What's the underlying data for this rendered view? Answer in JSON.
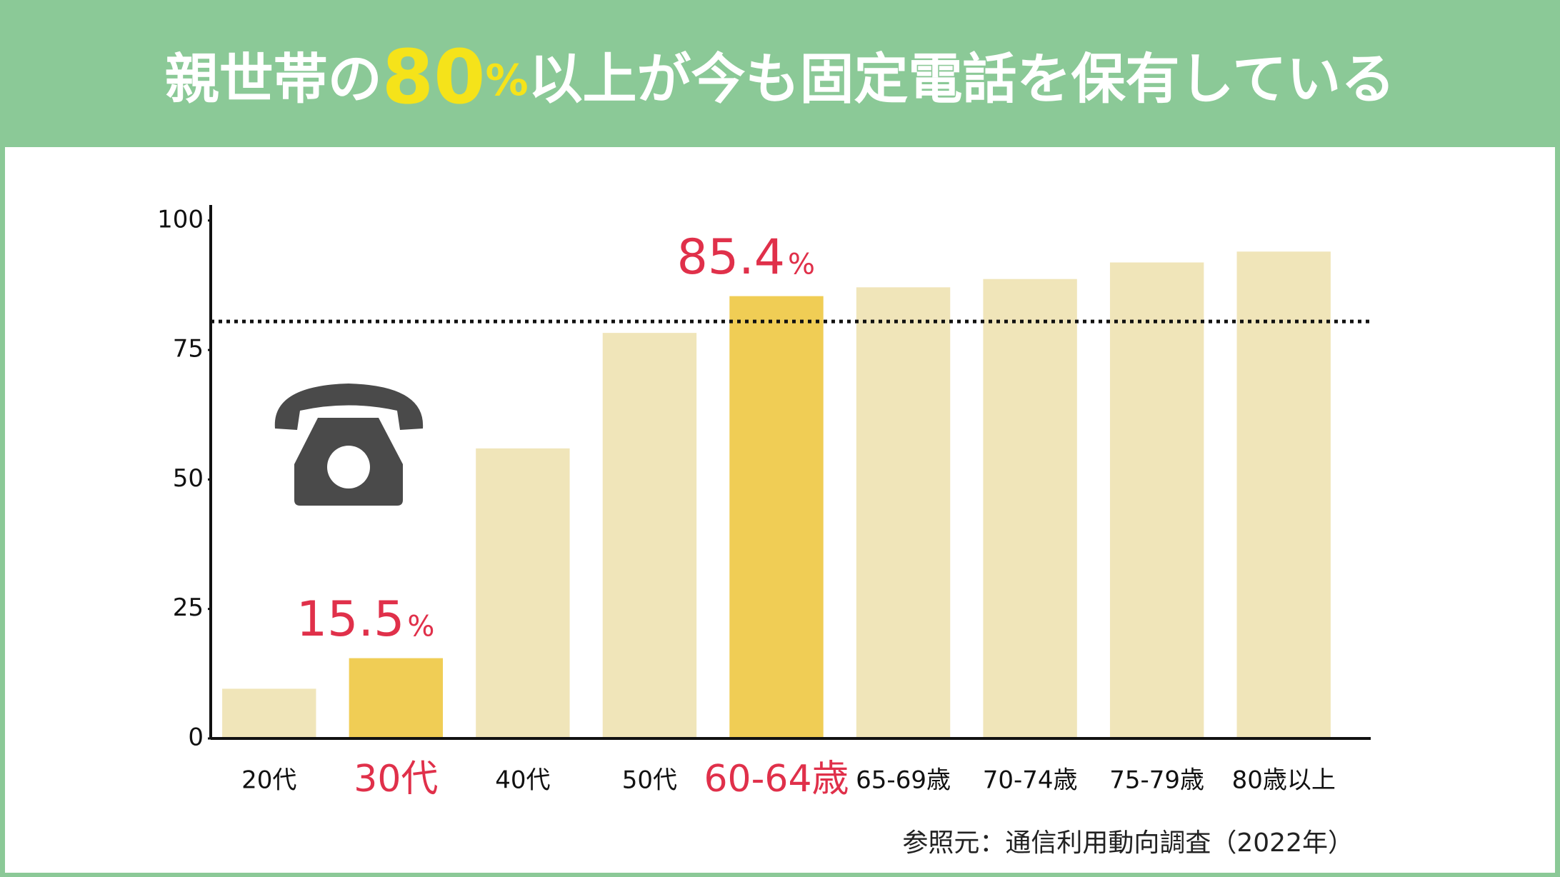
{
  "chart_data": {
    "type": "bar",
    "title": [
      "親世帯の",
      "80",
      "%",
      "以上が今も固定電話を保有している"
    ],
    "categories": [
      "20代",
      "30代",
      "40代",
      "50代",
      "60-64歳",
      "65-69歳",
      "70-74歳",
      "75-79歳",
      "80歳以上"
    ],
    "values": [
      9.6,
      15.5,
      56,
      78.3,
      85.4,
      87.1,
      88.7,
      91.9,
      94
    ],
    "highlighted": [
      false,
      true,
      false,
      false,
      true,
      false,
      false,
      false,
      false
    ],
    "value_label_unit": "%",
    "color": "#f0e5b9",
    "highlight_color": "#f0cd55",
    "label_color": "#e0304a",
    "ylim": [
      0,
      103
    ],
    "yticks": [
      0,
      25,
      50,
      75,
      100
    ],
    "reference_line": 80.5,
    "source": "参照元：通信利用動向調査（2022年）"
  }
}
